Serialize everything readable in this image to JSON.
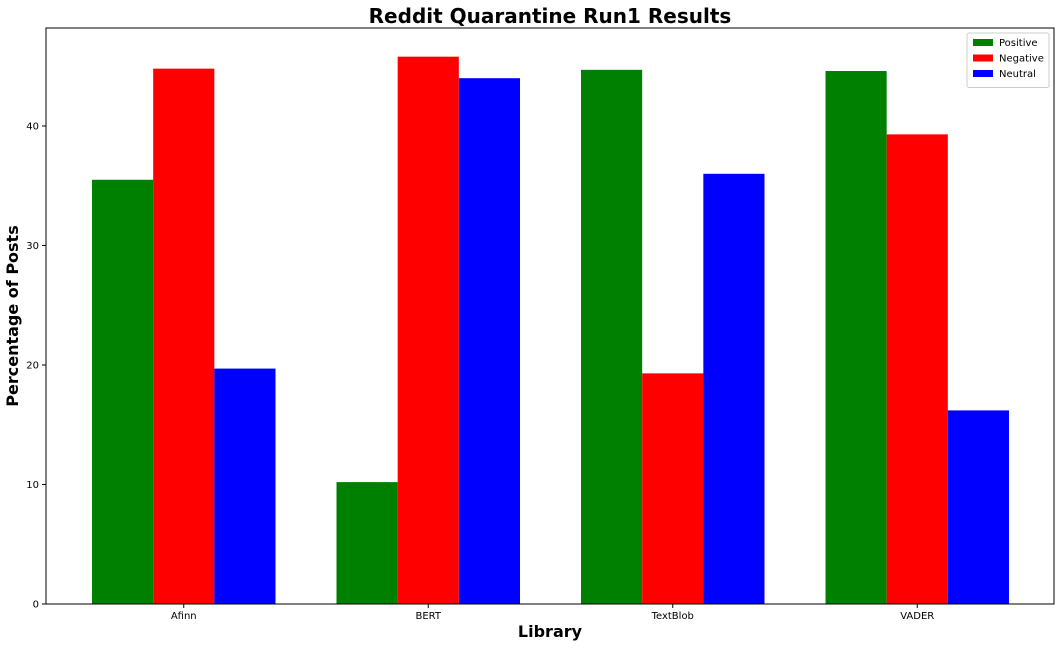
{
  "chart_data": {
    "type": "bar",
    "title": "Reddit Quarantine Run1 Results",
    "xlabel": "Library",
    "ylabel": "Percentage of Posts",
    "categories": [
      "Afinn",
      "BERT",
      "TextBlob",
      "VADER"
    ],
    "series": [
      {
        "name": "Positive",
        "color": "#008000",
        "values": [
          35.5,
          10.2,
          44.7,
          44.6
        ]
      },
      {
        "name": "Negative",
        "color": "#ff0000",
        "values": [
          44.8,
          45.8,
          19.3,
          39.3
        ]
      },
      {
        "name": "Neutral",
        "color": "#0000ff",
        "values": [
          19.7,
          44.0,
          36.0,
          16.2
        ]
      }
    ],
    "ylim": [
      0,
      48.2
    ],
    "yticks": [
      0,
      10,
      20,
      30,
      40
    ],
    "grid": false,
    "legend_position": "top-right"
  }
}
